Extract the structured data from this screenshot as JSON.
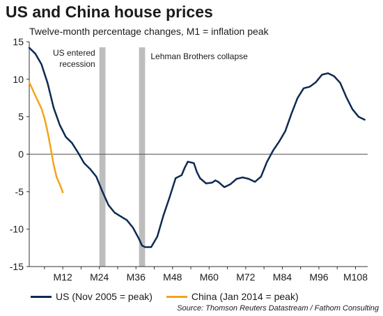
{
  "title": "US and China house prices",
  "subtitle": "Twelve-month percentage changes, M1 = inflation peak",
  "source": "Source: Thomson Reuters Datastream / Fathom Consulting",
  "colors": {
    "us": "#0d2a52",
    "china": "#f5a31a",
    "bars": "#bdbdbd",
    "zero": "#555555"
  },
  "chart_data": {
    "type": "line",
    "title": "US and China house prices",
    "subtitle": "Twelve-month percentage changes, M1 = inflation peak",
    "xlim": [
      1,
      112
    ],
    "ylim": [
      -15,
      15
    ],
    "x_ticks": [
      {
        "x": 12,
        "label": "M12"
      },
      {
        "x": 24,
        "label": "M24"
      },
      {
        "x": 36,
        "label": "M36"
      },
      {
        "x": 48,
        "label": "M48"
      },
      {
        "x": 60,
        "label": "M60"
      },
      {
        "x": 72,
        "label": "M72"
      },
      {
        "x": 84,
        "label": "M84"
      },
      {
        "x": 96,
        "label": "M96"
      },
      {
        "x": 108,
        "label": "M108"
      }
    ],
    "y_ticks": [
      {
        "y": 15,
        "label": "15"
      },
      {
        "y": 10,
        "label": "10"
      },
      {
        "y": 5,
        "label": "5"
      },
      {
        "y": 0,
        "label": "0"
      },
      {
        "y": -5,
        "label": "-5"
      },
      {
        "y": -10,
        "label": "-10"
      },
      {
        "y": -15,
        "label": "-15"
      }
    ],
    "bands": [
      {
        "x0": 24,
        "x1": 26,
        "label": "US entered recession",
        "label_lines": [
          "US entered",
          "recession"
        ]
      },
      {
        "x0": 37,
        "x1": 39,
        "label": "Lehman Brothers collapse",
        "label_lines": [
          "Lehman Brothers collapse"
        ]
      }
    ],
    "series": [
      {
        "name": "US (Nov 2005 = peak)",
        "color": "#0d2a52",
        "x": [
          1,
          3,
          5,
          7,
          9,
          11,
          13,
          15,
          17,
          19,
          21,
          23,
          25,
          27,
          29,
          31,
          33,
          35,
          37,
          38,
          39,
          41,
          43,
          45,
          47,
          49,
          51,
          52,
          53,
          55,
          56,
          57,
          59,
          61,
          62,
          63,
          65,
          67,
          69,
          71,
          73,
          75,
          77,
          79,
          81,
          83,
          85,
          87,
          89,
          91,
          93,
          95,
          97,
          99,
          101,
          103,
          105,
          107,
          109,
          111
        ],
        "y": [
          14.2,
          13.4,
          12.0,
          9.5,
          6.2,
          3.9,
          2.3,
          1.5,
          0.2,
          -1.2,
          -2.0,
          -3.0,
          -5.0,
          -6.8,
          -7.8,
          -8.3,
          -8.8,
          -9.8,
          -11.3,
          -12.2,
          -12.4,
          -12.4,
          -11.0,
          -8.2,
          -5.8,
          -3.2,
          -2.8,
          -1.8,
          -1.0,
          -1.2,
          -2.4,
          -3.2,
          -3.9,
          -3.8,
          -3.5,
          -3.7,
          -4.4,
          -4.0,
          -3.3,
          -3.1,
          -3.3,
          -3.7,
          -3.0,
          -1.0,
          0.5,
          1.7,
          3.1,
          5.4,
          7.5,
          8.8,
          9.0,
          9.6,
          10.6,
          10.8,
          10.4,
          9.5,
          7.6,
          6.0,
          5.0,
          4.6
        ]
      },
      {
        "name": "China (Jan 2014 = peak)",
        "color": "#f5a31a",
        "x": [
          1,
          3,
          5,
          6,
          7,
          8,
          9,
          10,
          11,
          12
        ],
        "y": [
          9.6,
          7.8,
          6.1,
          4.8,
          3.0,
          0.9,
          -1.4,
          -3.1,
          -4.0,
          -5.1
        ]
      }
    ],
    "grid": false,
    "legend_position": "bottom"
  }
}
